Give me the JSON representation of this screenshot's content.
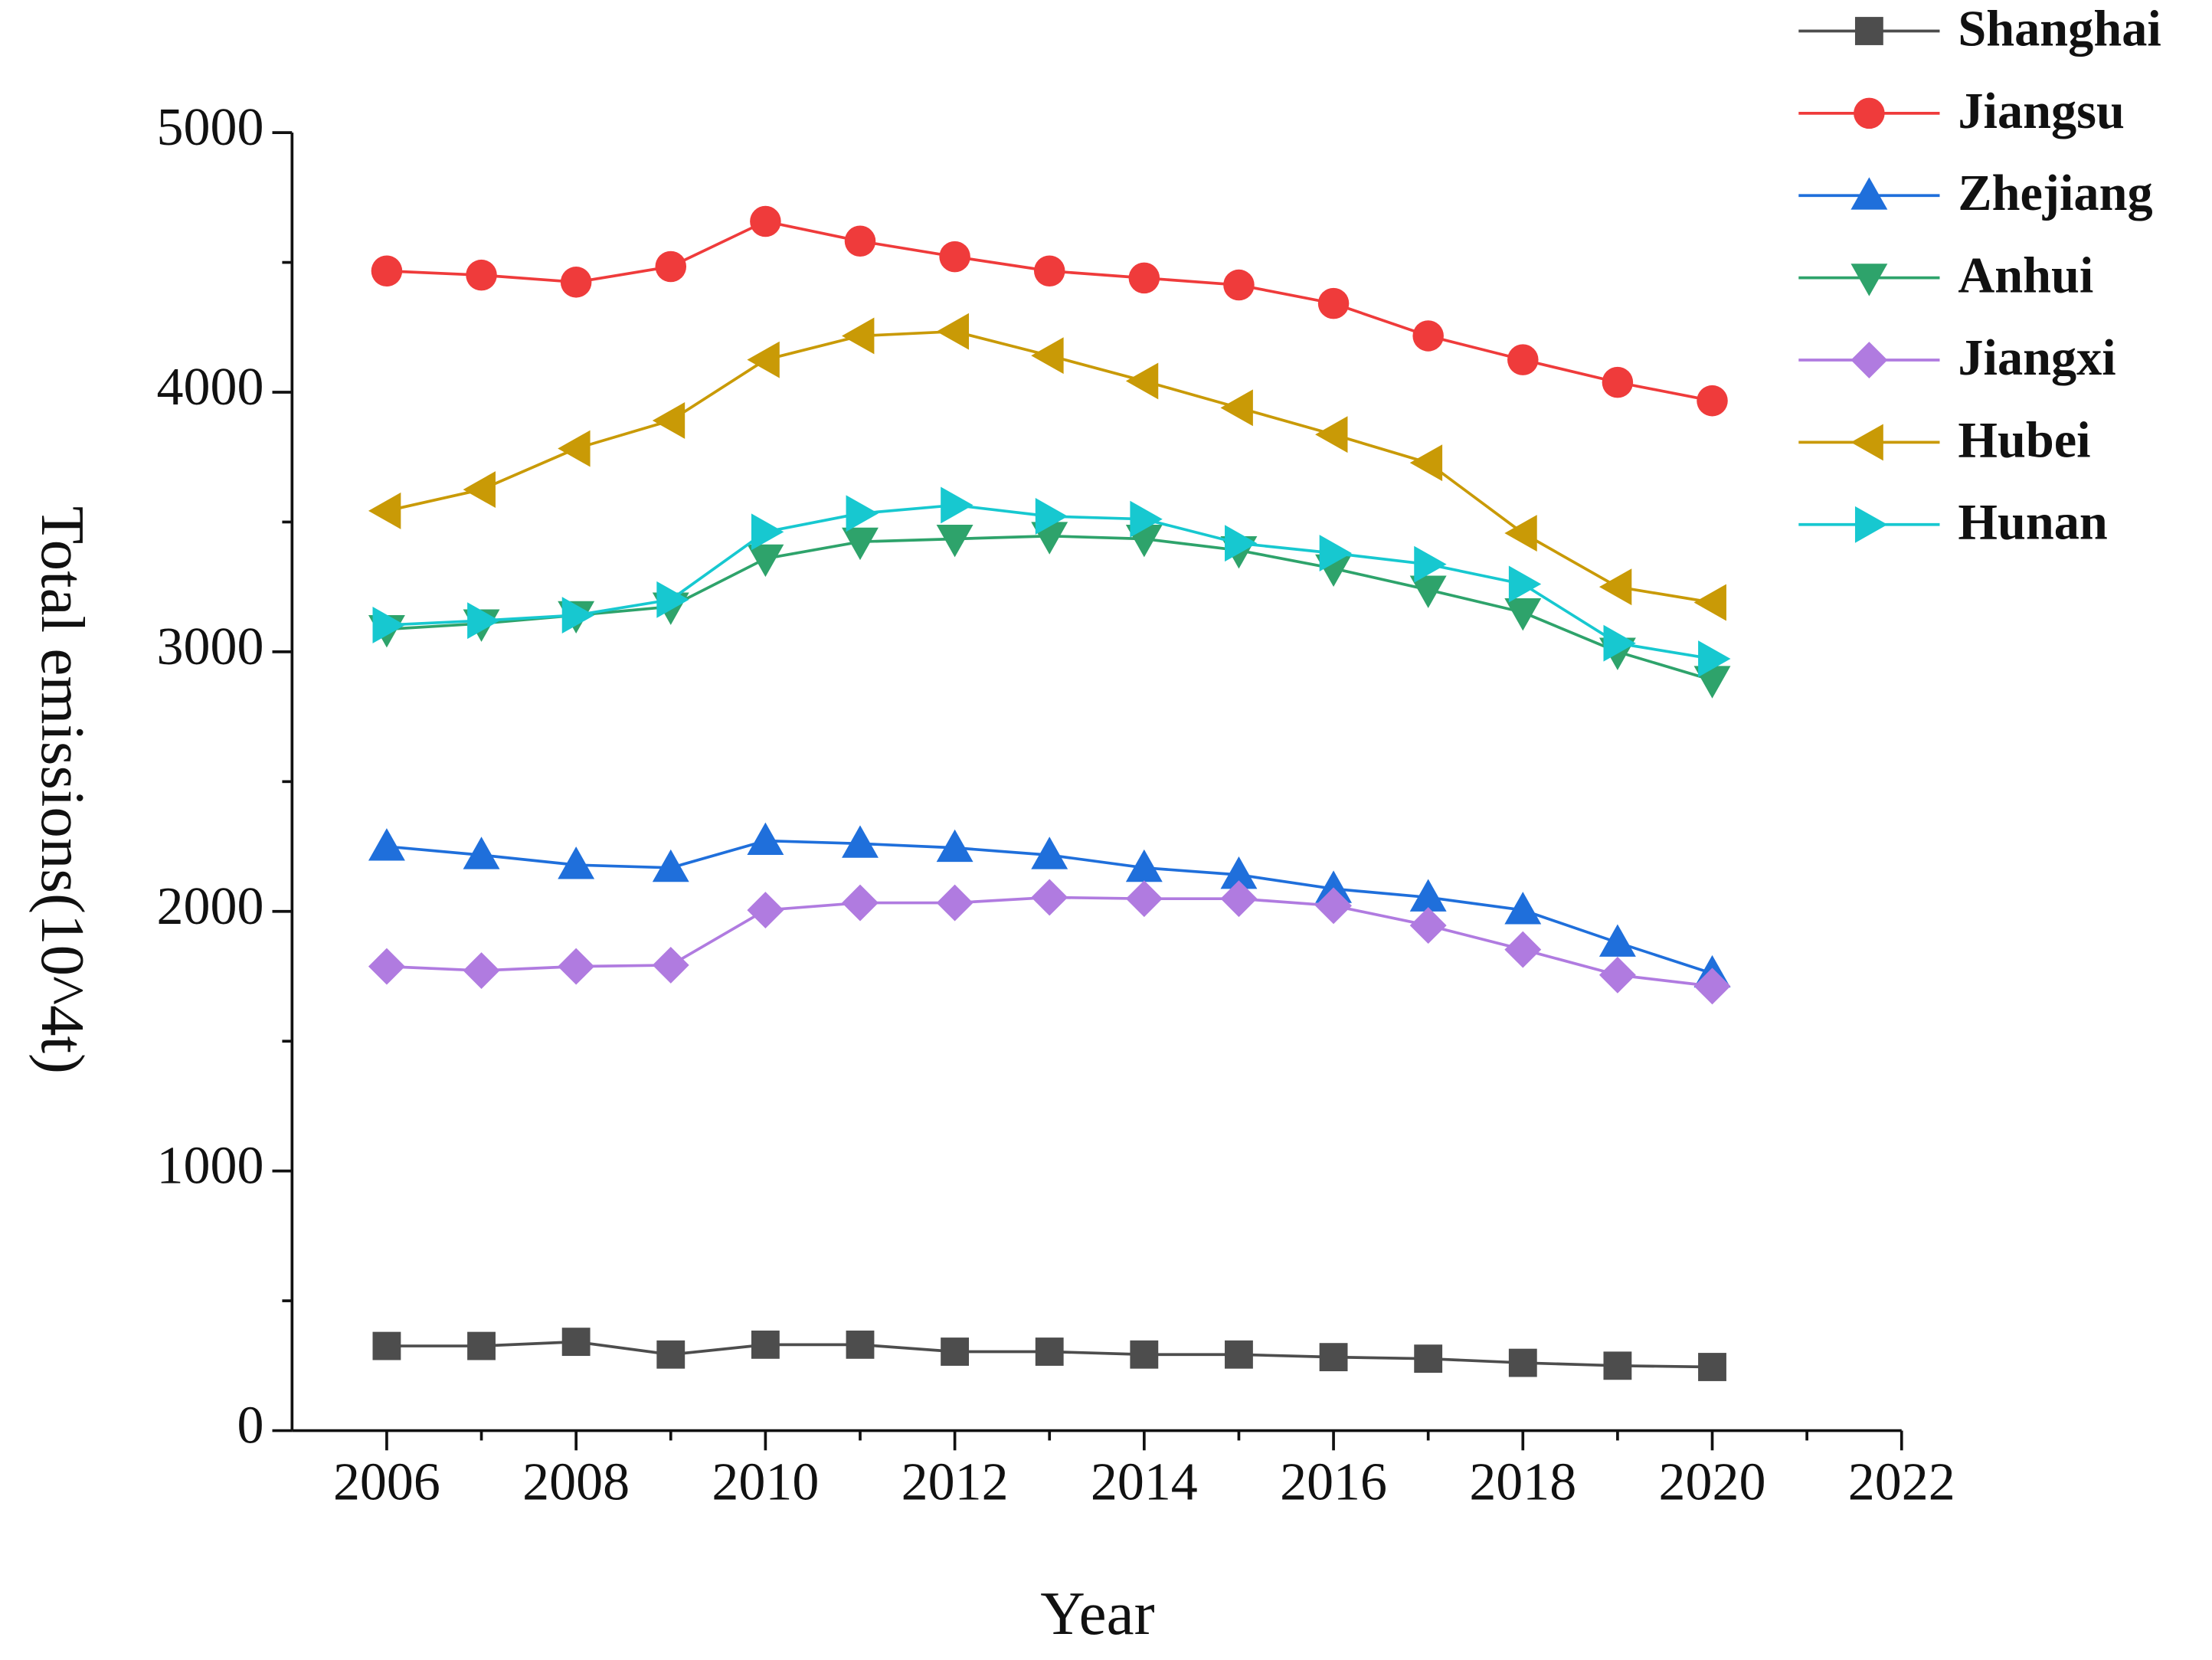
{
  "chart_data": {
    "type": "line",
    "x_label": "Year",
    "y_label": "Total emissions(10^4t)",
    "x": [
      2006,
      2007,
      2008,
      2009,
      2010,
      2011,
      2012,
      2013,
      2014,
      2015,
      2016,
      2017,
      2018,
      2019,
      2020
    ],
    "xlim": [
      2005,
      2022
    ],
    "xticks": [
      2006,
      2008,
      2010,
      2012,
      2014,
      2016,
      2018,
      2020,
      2022
    ],
    "ylim": [
      0,
      5000
    ],
    "yticks": [
      0,
      1000,
      2000,
      3000,
      4000,
      5000
    ],
    "legend": "top-right",
    "series": [
      {
        "name": "Shanghai",
        "color": "#4d4d4d",
        "marker": "square",
        "values": [
          326,
          326,
          342,
          293,
          331,
          331,
          304,
          304,
          293,
          293,
          283,
          277,
          261,
          250,
          245
        ]
      },
      {
        "name": "Jiangsu",
        "color": "#ef3b3b",
        "marker": "circle",
        "values": [
          4467,
          4451,
          4424,
          4484,
          4658,
          4582,
          4522,
          4467,
          4440,
          4413,
          4342,
          4217,
          4125,
          4038,
          3967
        ]
      },
      {
        "name": "Zhejiang",
        "color": "#1f6fdb",
        "marker": "triangle-up",
        "values": [
          2250,
          2217,
          2179,
          2168,
          2272,
          2261,
          2245,
          2217,
          2168,
          2141,
          2087,
          2054,
          2005,
          1880,
          1761
        ]
      },
      {
        "name": "Anhui",
        "color": "#2ea36b",
        "marker": "triangle-down",
        "values": [
          3087,
          3109,
          3141,
          3174,
          3359,
          3424,
          3435,
          3446,
          3435,
          3391,
          3321,
          3239,
          3152,
          3000,
          2891
        ]
      },
      {
        "name": "Jiangxi",
        "color": "#b07be0",
        "marker": "diamond",
        "values": [
          1788,
          1772,
          1788,
          1793,
          2005,
          2033,
          2033,
          2054,
          2049,
          2049,
          2022,
          1946,
          1853,
          1755,
          1712
        ]
      },
      {
        "name": "Hubei",
        "color": "#c99a06",
        "marker": "triangle-left",
        "values": [
          3543,
          3625,
          3783,
          3891,
          4125,
          4217,
          4234,
          4141,
          4043,
          3940,
          3837,
          3728,
          3457,
          3250,
          3190
        ]
      },
      {
        "name": "Hunan",
        "color": "#17c8d0",
        "marker": "triangle-right",
        "values": [
          3103,
          3120,
          3141,
          3201,
          3462,
          3533,
          3565,
          3522,
          3511,
          3418,
          3380,
          3337,
          3261,
          3033,
          2973
        ]
      }
    ]
  }
}
